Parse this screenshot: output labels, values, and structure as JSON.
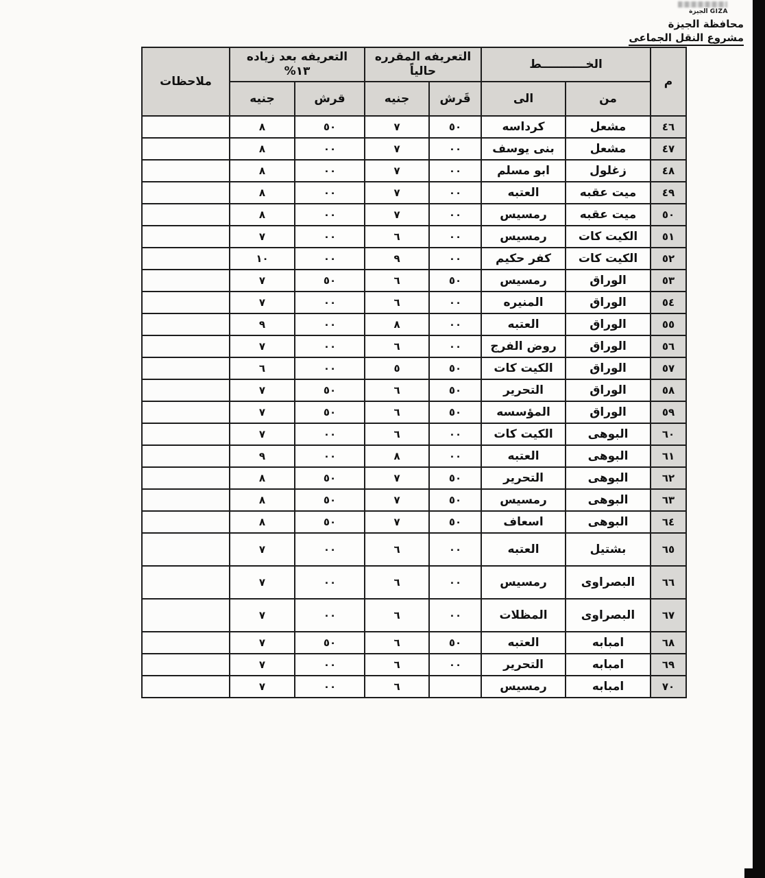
{
  "page": {
    "logo_text": "الجيزة GIZA",
    "title_line1": "محافظة الجيزة",
    "title_line2": "مشروع النقل الجماعى"
  },
  "table": {
    "header": {
      "m": "م",
      "line_group": "الخـــــــــــط",
      "from": "من",
      "to": "الى",
      "current_l1": "التعريفه المقرره",
      "current_l2": "حالياً",
      "after_l1": "التعريفه بعد زياده",
      "after_l2": "١٣%",
      "qirsh_current": "قَرش",
      "genieh_current": "جنيه",
      "qirsh_after": "قرش",
      "genieh_after": "جنيه",
      "notes": "ملاحظات"
    },
    "rows": [
      {
        "m": "٤٦",
        "from": "مشعل",
        "to": "كرداسه",
        "cq": "٥٠",
        "cg": "٧",
        "aq": "٥٠",
        "ag": "٨",
        "notes": "",
        "tall": false
      },
      {
        "m": "٤٧",
        "from": "مشعل",
        "to": "بنى يوسف",
        "cq": "٠٠",
        "cg": "٧",
        "aq": "٠٠",
        "ag": "٨",
        "notes": "",
        "tall": false
      },
      {
        "m": "٤٨",
        "from": "زغلول",
        "to": "ابو مسلم",
        "cq": "٠٠",
        "cg": "٧",
        "aq": "٠٠",
        "ag": "٨",
        "notes": "",
        "tall": false
      },
      {
        "m": "٤٩",
        "from": "ميت عقبه",
        "to": "العتبه",
        "cq": "٠٠",
        "cg": "٧",
        "aq": "٠٠",
        "ag": "٨",
        "notes": "",
        "tall": false
      },
      {
        "m": "٥٠",
        "from": "ميت عقبه",
        "to": "رمسيس",
        "cq": "٠٠",
        "cg": "٧",
        "aq": "٠٠",
        "ag": "٨",
        "notes": "",
        "tall": false
      },
      {
        "m": "٥١",
        "from": "الكيت كات",
        "to": "رمسيس",
        "cq": "٠٠",
        "cg": "٦",
        "aq": "٠٠",
        "ag": "٧",
        "notes": "",
        "tall": false
      },
      {
        "m": "٥٢",
        "from": "الكيت كات",
        "to": "كفر حكيم",
        "cq": "٠٠",
        "cg": "٩",
        "aq": "٠٠",
        "ag": "١٠",
        "notes": "",
        "tall": false
      },
      {
        "m": "٥٣",
        "from": "الوراق",
        "to": "رمسيس",
        "cq": "٥٠",
        "cg": "٦",
        "aq": "٥٠",
        "ag": "٧",
        "notes": "",
        "tall": false
      },
      {
        "m": "٥٤",
        "from": "الوراق",
        "to": "المنيره",
        "cq": "٠٠",
        "cg": "٦",
        "aq": "٠٠",
        "ag": "٧",
        "notes": "",
        "tall": false
      },
      {
        "m": "٥٥",
        "from": "الوراق",
        "to": "العتبه",
        "cq": "٠٠",
        "cg": "٨",
        "aq": "٠٠",
        "ag": "٩",
        "notes": "",
        "tall": false
      },
      {
        "m": "٥٦",
        "from": "الوراق",
        "to": "روض الفرج",
        "cq": "٠٠",
        "cg": "٦",
        "aq": "٠٠",
        "ag": "٧",
        "notes": "",
        "tall": false
      },
      {
        "m": "٥٧",
        "from": "الوراق",
        "to": "الكيت كات",
        "cq": "٥٠",
        "cg": "٥",
        "aq": "٠٠",
        "ag": "٦",
        "notes": "",
        "tall": false
      },
      {
        "m": "٥٨",
        "from": "الوراق",
        "to": "التحرير",
        "cq": "٥٠",
        "cg": "٦",
        "aq": "٥٠",
        "ag": "٧",
        "notes": "",
        "tall": false
      },
      {
        "m": "٥٩",
        "from": "الوراق",
        "to": "المؤسسه",
        "cq": "٥٠",
        "cg": "٦",
        "aq": "٥٠",
        "ag": "٧",
        "notes": "",
        "tall": false
      },
      {
        "m": "٦٠",
        "from": "البوهى",
        "to": "الكيت كات",
        "cq": "٠٠",
        "cg": "٦",
        "aq": "٠٠",
        "ag": "٧",
        "notes": "",
        "tall": false
      },
      {
        "m": "٦١",
        "from": "البوهى",
        "to": "العتبه",
        "cq": "٠٠",
        "cg": "٨",
        "aq": "٠٠",
        "ag": "٩",
        "notes": "",
        "tall": false
      },
      {
        "m": "٦٢",
        "from": "البوهى",
        "to": "التحرير",
        "cq": "٥٠",
        "cg": "٧",
        "aq": "٥٠",
        "ag": "٨",
        "notes": "",
        "tall": false
      },
      {
        "m": "٦٣",
        "from": "البوهى",
        "to": "رمسيس",
        "cq": "٥٠",
        "cg": "٧",
        "aq": "٥٠",
        "ag": "٨",
        "notes": "",
        "tall": false
      },
      {
        "m": "٦٤",
        "from": "البوهى",
        "to": "اسعاف",
        "cq": "٥٠",
        "cg": "٧",
        "aq": "٥٠",
        "ag": "٨",
        "notes": "",
        "tall": false
      },
      {
        "m": "٦٥",
        "from": "بشتيل",
        "to": "العتبه",
        "cq": "٠٠",
        "cg": "٦",
        "aq": "٠٠",
        "ag": "٧",
        "notes": "",
        "tall": true
      },
      {
        "m": "٦٦",
        "from": "البصراوى",
        "to": "رمسيس",
        "cq": "٠٠",
        "cg": "٦",
        "aq": "٠٠",
        "ag": "٧",
        "notes": "",
        "tall": true
      },
      {
        "m": "٦٧",
        "from": "البصراوى",
        "to": "المظلات",
        "cq": "٠٠",
        "cg": "٦",
        "aq": "٠٠",
        "ag": "٧",
        "notes": "",
        "tall": true
      },
      {
        "m": "٦٨",
        "from": "امبابه",
        "to": "العتبه",
        "cq": "٥٠",
        "cg": "٦",
        "aq": "٥٠",
        "ag": "٧",
        "notes": "",
        "tall": false
      },
      {
        "m": "٦٩",
        "from": "امبابه",
        "to": "التحرير",
        "cq": "٠٠",
        "cg": "٦",
        "aq": "٠٠",
        "ag": "٧",
        "notes": "",
        "tall": false
      },
      {
        "m": "٧٠",
        "from": "امبابه",
        "to": "رمسيس",
        "cq": "",
        "cg": "٦",
        "aq": "٠٠",
        "ag": "٧",
        "notes": "",
        "tall": false
      }
    ]
  }
}
